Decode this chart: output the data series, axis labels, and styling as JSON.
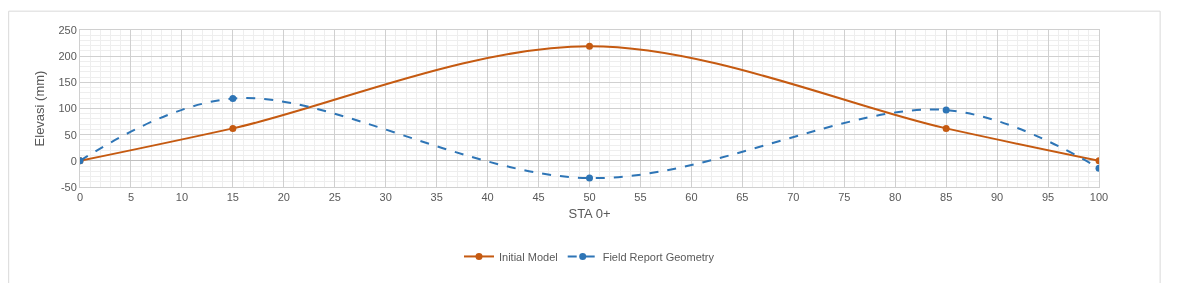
{
  "chart_data": {
    "type": "line",
    "xlabel": "STA 0+",
    "ylabel": "Elevasi (mm)",
    "x": [
      0,
      15,
      50,
      85,
      100
    ],
    "series": [
      {
        "name": "Initial Model",
        "color": "#c55a11",
        "values": [
          0,
          62,
          219,
          62,
          0
        ],
        "line_style": "solid"
      },
      {
        "name": "Field Report Geometry",
        "color": "#2e75b6",
        "values": [
          0,
          119,
          -33,
          97,
          -14
        ],
        "line_style": "dashed"
      }
    ],
    "xlim": [
      0,
      100
    ],
    "xticks": [
      0,
      5,
      10,
      15,
      20,
      25,
      30,
      35,
      40,
      45,
      50,
      55,
      60,
      65,
      70,
      75,
      80,
      85,
      90,
      95,
      100
    ],
    "ylim": [
      -50,
      250
    ],
    "yticks": [
      -50,
      0,
      50,
      100,
      150,
      200,
      250
    ],
    "grid": true,
    "legend": "bottom",
    "marker": "circle"
  }
}
